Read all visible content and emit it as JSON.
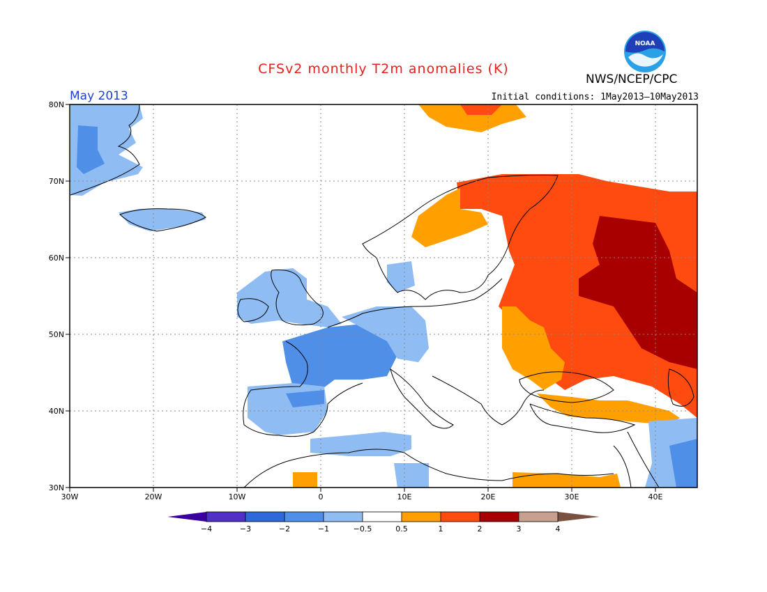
{
  "title": "CFSv2 monthly T2m anomalies (K)",
  "month": "May 2013",
  "initial_conditions": "Initial conditions: 1May2013–10May2013",
  "agency": "NWS/NCEP/CPC",
  "logo": {
    "text": "NOAA",
    "icon": "noaa-logo-icon"
  },
  "lat_labels": [
    "80N",
    "70N",
    "60N",
    "50N",
    "40N",
    "30N"
  ],
  "lon_labels": [
    "30W",
    "20W",
    "10W",
    "0",
    "10E",
    "20E",
    "30E",
    "40E"
  ],
  "colorbar_labels": [
    "−4",
    "−3",
    "−2",
    "−1",
    "−0.5",
    "0.5",
    "1",
    "2",
    "3",
    "4"
  ],
  "colorbar_colors": [
    "#5030c8",
    "#2f69d9",
    "#4f8fe8",
    "#8fbcf2",
    "#ffffff",
    "#ff9f00",
    "#ff4a10",
    "#a80000",
    "#c8a090",
    "#7a5040",
    "#3a00a0"
  ],
  "map_colors": {
    "land_outline": "#000000",
    "grid": "#888888"
  }
}
